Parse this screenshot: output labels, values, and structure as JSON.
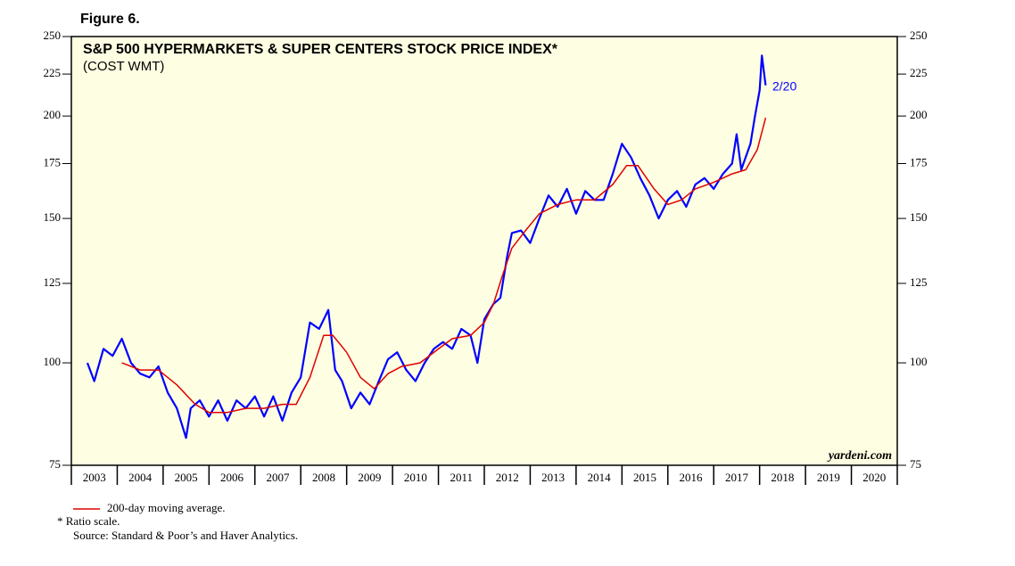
{
  "chart_data": {
    "type": "line",
    "figure_label": "Figure 6.",
    "title": "S&P 500 HYPERMARKETS & SUPER CENTERS STOCK PRICE INDEX*",
    "subtitle": "(COST WMT)",
    "annotations": [
      "2/20",
      "yardeni.com"
    ],
    "footnotes": [
      "* Ratio scale.",
      "Source: Standard & Poor’s and Haver Analytics."
    ],
    "log_scale": true,
    "xlim": [
      2003,
      2021
    ],
    "xticks": [
      2003,
      2004,
      2005,
      2006,
      2007,
      2008,
      2009,
      2010,
      2011,
      2012,
      2013,
      2014,
      2015,
      2016,
      2017,
      2018,
      2019,
      2020
    ],
    "ylim": [
      75,
      250
    ],
    "yticks": [
      75,
      100,
      125,
      150,
      175,
      200,
      225,
      250
    ],
    "background": "#fefee2",
    "series": [
      {
        "color": "#0000ff",
        "x": [
          2003.35,
          2003.5,
          2003.7,
          2003.9,
          2004.1,
          2004.3,
          2004.5,
          2004.7,
          2004.9,
          2005.1,
          2005.3,
          2005.5,
          2005.6,
          2005.8,
          2006.0,
          2006.2,
          2006.4,
          2006.6,
          2006.8,
          2007.0,
          2007.2,
          2007.4,
          2007.6,
          2007.8,
          2008.0,
          2008.2,
          2008.4,
          2008.6,
          2008.75,
          2008.9,
          2009.1,
          2009.3,
          2009.5,
          2009.7,
          2009.9,
          2010.1,
          2010.3,
          2010.5,
          2010.7,
          2010.9,
          2011.1,
          2011.3,
          2011.5,
          2011.7,
          2011.85,
          2012.0,
          2012.2,
          2012.35,
          2012.5,
          2012.6,
          2012.8,
          2013.0,
          2013.2,
          2013.4,
          2013.6,
          2013.8,
          2014.0,
          2014.2,
          2014.4,
          2014.6,
          2014.8,
          2015.0,
          2015.2,
          2015.4,
          2015.6,
          2015.8,
          2016.0,
          2016.2,
          2016.4,
          2016.6,
          2016.8,
          2017.0,
          2017.2,
          2017.4,
          2017.5,
          2017.6,
          2017.8,
          2017.9,
          2018.0,
          2018.05,
          2018.1,
          2018.13
        ],
        "values": [
          100,
          95,
          104,
          102,
          107,
          100,
          97,
          96,
          99,
          92,
          88,
          81,
          88,
          90,
          86,
          90,
          85,
          90,
          88,
          91,
          86,
          91,
          85,
          92,
          96,
          112,
          110,
          116,
          98,
          95,
          88,
          92,
          89,
          95,
          101,
          103,
          98,
          95,
          100,
          104,
          106,
          104,
          110,
          108,
          100,
          113,
          118,
          120,
          135,
          144,
          145,
          140,
          150,
          160,
          155,
          163,
          152,
          162,
          158,
          158,
          170,
          185,
          178,
          168,
          160,
          150,
          158,
          162,
          155,
          165,
          168,
          163,
          170,
          175,
          190,
          172,
          185,
          200,
          215,
          237,
          225,
          218
        ]
      },
      {
        "name": "200-day moving average.",
        "color": "#e00000",
        "x": [
          2004.1,
          2004.5,
          2004.9,
          2005.3,
          2005.7,
          2006.0,
          2006.4,
          2006.8,
          2007.2,
          2007.6,
          2007.9,
          2008.2,
          2008.5,
          2008.7,
          2009.0,
          2009.3,
          2009.6,
          2009.9,
          2010.2,
          2010.6,
          2011.0,
          2011.3,
          2011.7,
          2012.0,
          2012.2,
          2012.4,
          2012.6,
          2012.9,
          2013.2,
          2013.6,
          2014.0,
          2014.4,
          2014.8,
          2015.1,
          2015.35,
          2015.7,
          2016.0,
          2016.3,
          2016.6,
          2017.0,
          2017.4,
          2017.7,
          2017.95,
          2018.13
        ],
        "values": [
          100,
          98,
          98,
          94,
          89,
          87,
          87,
          88,
          88,
          89,
          89,
          96,
          108,
          108,
          103,
          96,
          93,
          97,
          99,
          100,
          104,
          107,
          108,
          112,
          118,
          128,
          138,
          145,
          152,
          156,
          158,
          158,
          165,
          174,
          174,
          163,
          156,
          158,
          163,
          166,
          170,
          172,
          182,
          199
        ]
      }
    ]
  }
}
